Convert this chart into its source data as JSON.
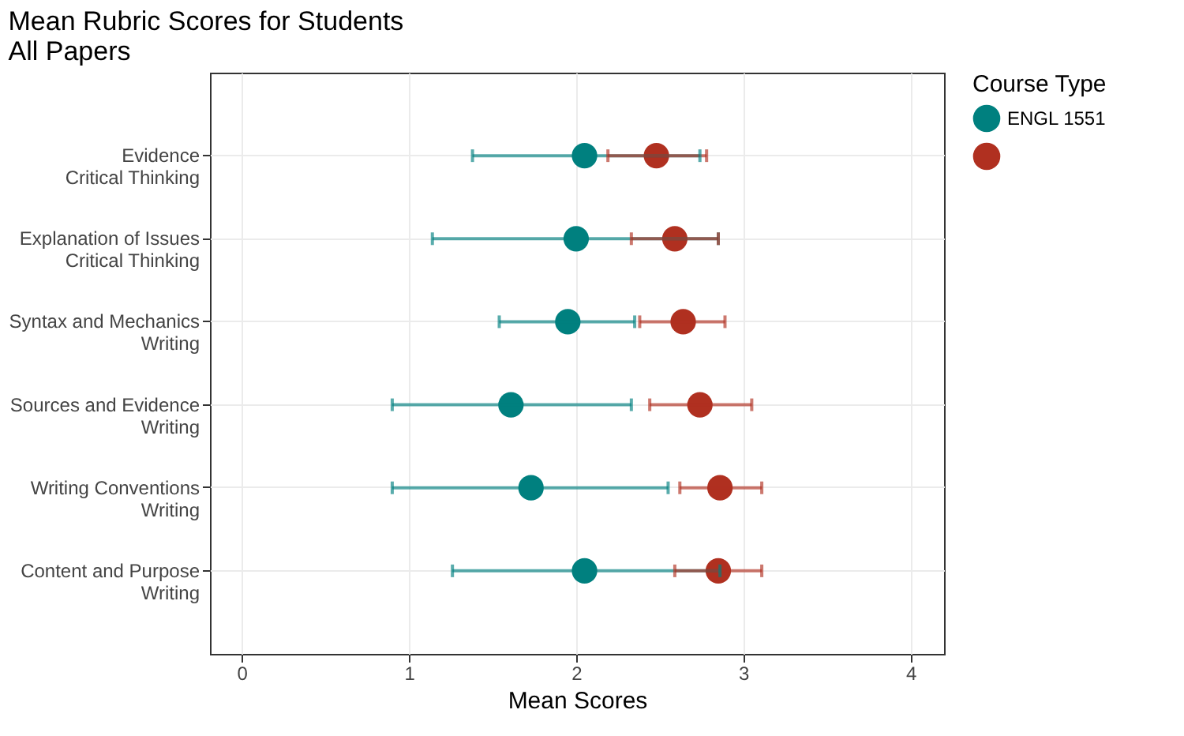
{
  "chart_data": {
    "type": "scatter",
    "title": "Mean Rubric Scores for Students\nAll Papers",
    "xlabel": "Mean Scores",
    "legend_title": "Course Type",
    "categories": [
      "Evidence\nCritical Thinking",
      "Explanation of Issues\nCritical Thinking",
      "Syntax and Mechanics\nWriting",
      "Sources and Evidence\nWriting",
      "Writing Conventions\nWriting",
      "Content and Purpose\nWriting"
    ],
    "series": [
      {
        "name": "ENGL 1551",
        "color": "#00807f",
        "values": [
          2.05,
          2.0,
          1.95,
          1.61,
          1.73,
          2.05
        ],
        "errors": [
          [
            1.38,
            2.74
          ],
          [
            1.14,
            2.85
          ],
          [
            1.54,
            2.35
          ],
          [
            0.9,
            2.33
          ],
          [
            0.9,
            2.55
          ],
          [
            1.26,
            2.86
          ]
        ]
      },
      {
        "color": "#b03020",
        "values": [
          2.48,
          2.59,
          2.64,
          2.74,
          2.86,
          2.85
        ],
        "errors": [
          [
            2.19,
            2.78
          ],
          [
            2.33,
            2.85
          ],
          [
            2.38,
            2.89
          ],
          [
            2.44,
            3.05
          ],
          [
            2.62,
            3.11
          ],
          [
            2.59,
            3.11
          ]
        ]
      }
    ],
    "orientation": "horizontal",
    "xlim": [
      -0.19,
      4.2
    ],
    "xticks": [
      0,
      1,
      2,
      3,
      4
    ],
    "grid": true,
    "legend": "right",
    "marker": "circle"
  }
}
